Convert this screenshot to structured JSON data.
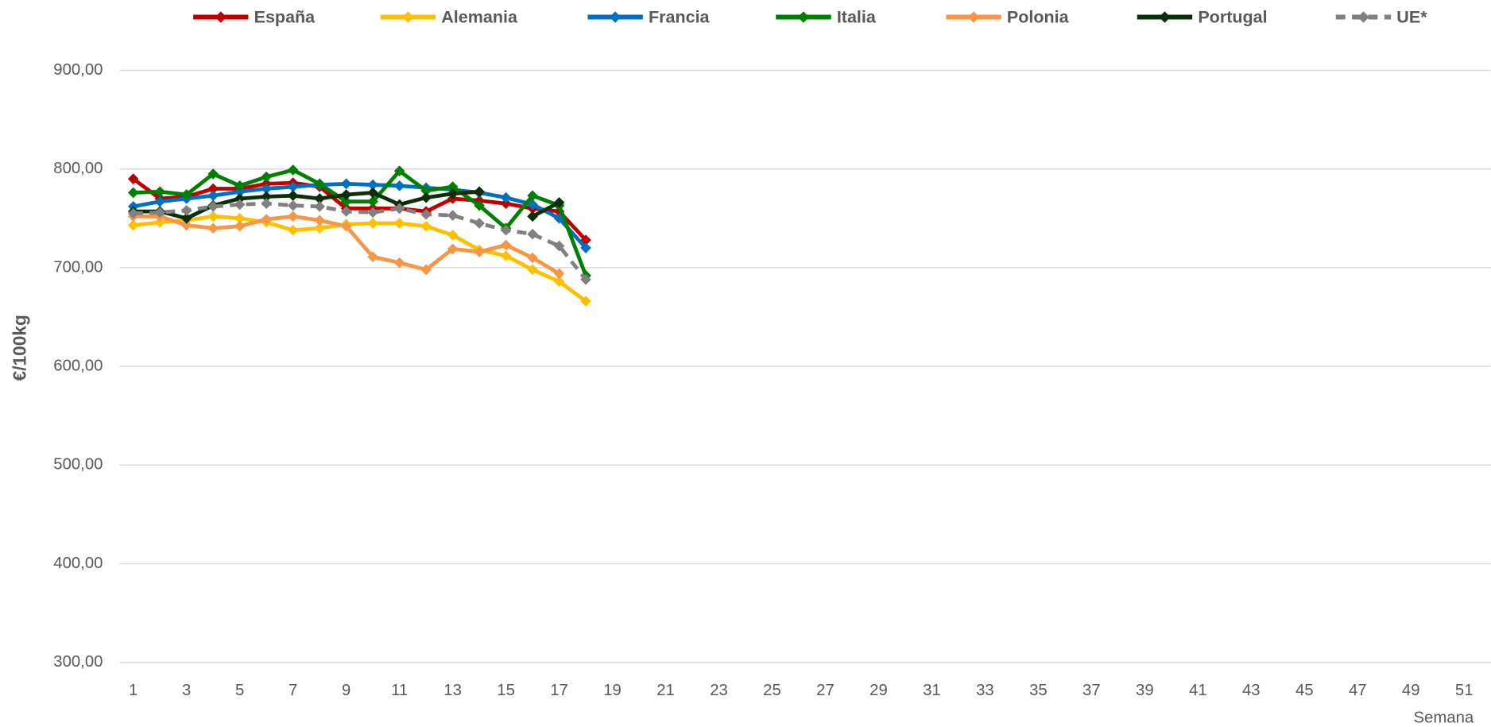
{
  "chart_data": {
    "type": "line",
    "y_label": "€/100kg",
    "x_label": "Semana",
    "x": [
      1,
      2,
      3,
      4,
      5,
      6,
      7,
      8,
      9,
      10,
      11,
      12,
      13,
      14,
      15,
      16,
      17,
      18
    ],
    "xlim": [
      0.5,
      52
    ],
    "xticks": [
      1,
      3,
      5,
      7,
      9,
      11,
      13,
      15,
      17,
      19,
      21,
      23,
      25,
      27,
      29,
      31,
      33,
      35,
      37,
      39,
      41,
      43,
      45,
      47,
      49,
      51
    ],
    "ylim": [
      300,
      900
    ],
    "yticks": [
      {
        "value": 300,
        "label": "300,00"
      },
      {
        "value": 400,
        "label": "400,00"
      },
      {
        "value": 500,
        "label": "500,00"
      },
      {
        "value": 600,
        "label": "600,00"
      },
      {
        "value": 700,
        "label": "700,00"
      },
      {
        "value": 800,
        "label": "800,00"
      },
      {
        "value": 900,
        "label": "900,00"
      }
    ],
    "grid": true,
    "legend": "top",
    "series": [
      {
        "name": "España",
        "color": "#c00000",
        "values": [
          790,
          770,
          772,
          780,
          780,
          785,
          786,
          782,
          760,
          760,
          760,
          757,
          770,
          768,
          765,
          760,
          757,
          728
        ]
      },
      {
        "name": "Alemania",
        "color": "#ffc000",
        "values": [
          743,
          746,
          748,
          752,
          750,
          746,
          738,
          740,
          744,
          745,
          745,
          742,
          733,
          718,
          712,
          698,
          686,
          666
        ]
      },
      {
        "name": "Francia",
        "color": "#0070c0",
        "values": [
          762,
          767,
          770,
          773,
          777,
          780,
          782,
          784,
          785,
          784,
          783,
          781,
          779,
          776,
          771,
          764,
          750,
          720
        ]
      },
      {
        "name": "Italia",
        "color": "#008000",
        "values": [
          776,
          777,
          774,
          795,
          783,
          792,
          799,
          785,
          767,
          767,
          798,
          778,
          782,
          763,
          740,
          773,
          763,
          692
        ]
      },
      {
        "name": "Polonia",
        "color": "#f79646",
        "values": [
          752,
          752,
          743,
          740,
          742,
          749,
          752,
          748,
          742,
          711,
          705,
          698,
          719,
          716,
          723,
          710,
          694,
          null
        ]
      },
      {
        "name": "Portugal",
        "color": "#0b2e0b",
        "values": [
          757,
          757,
          750,
          763,
          770,
          772,
          773,
          770,
          774,
          776,
          764,
          771,
          775,
          777,
          null,
          752,
          766,
          null
        ]
      },
      {
        "name": "UE*",
        "color": "#808080",
        "dashed": true,
        "values": [
          755,
          756,
          758,
          762,
          764,
          765,
          763,
          762,
          757,
          756,
          760,
          754,
          753,
          745,
          738,
          734,
          722,
          688
        ]
      }
    ]
  }
}
